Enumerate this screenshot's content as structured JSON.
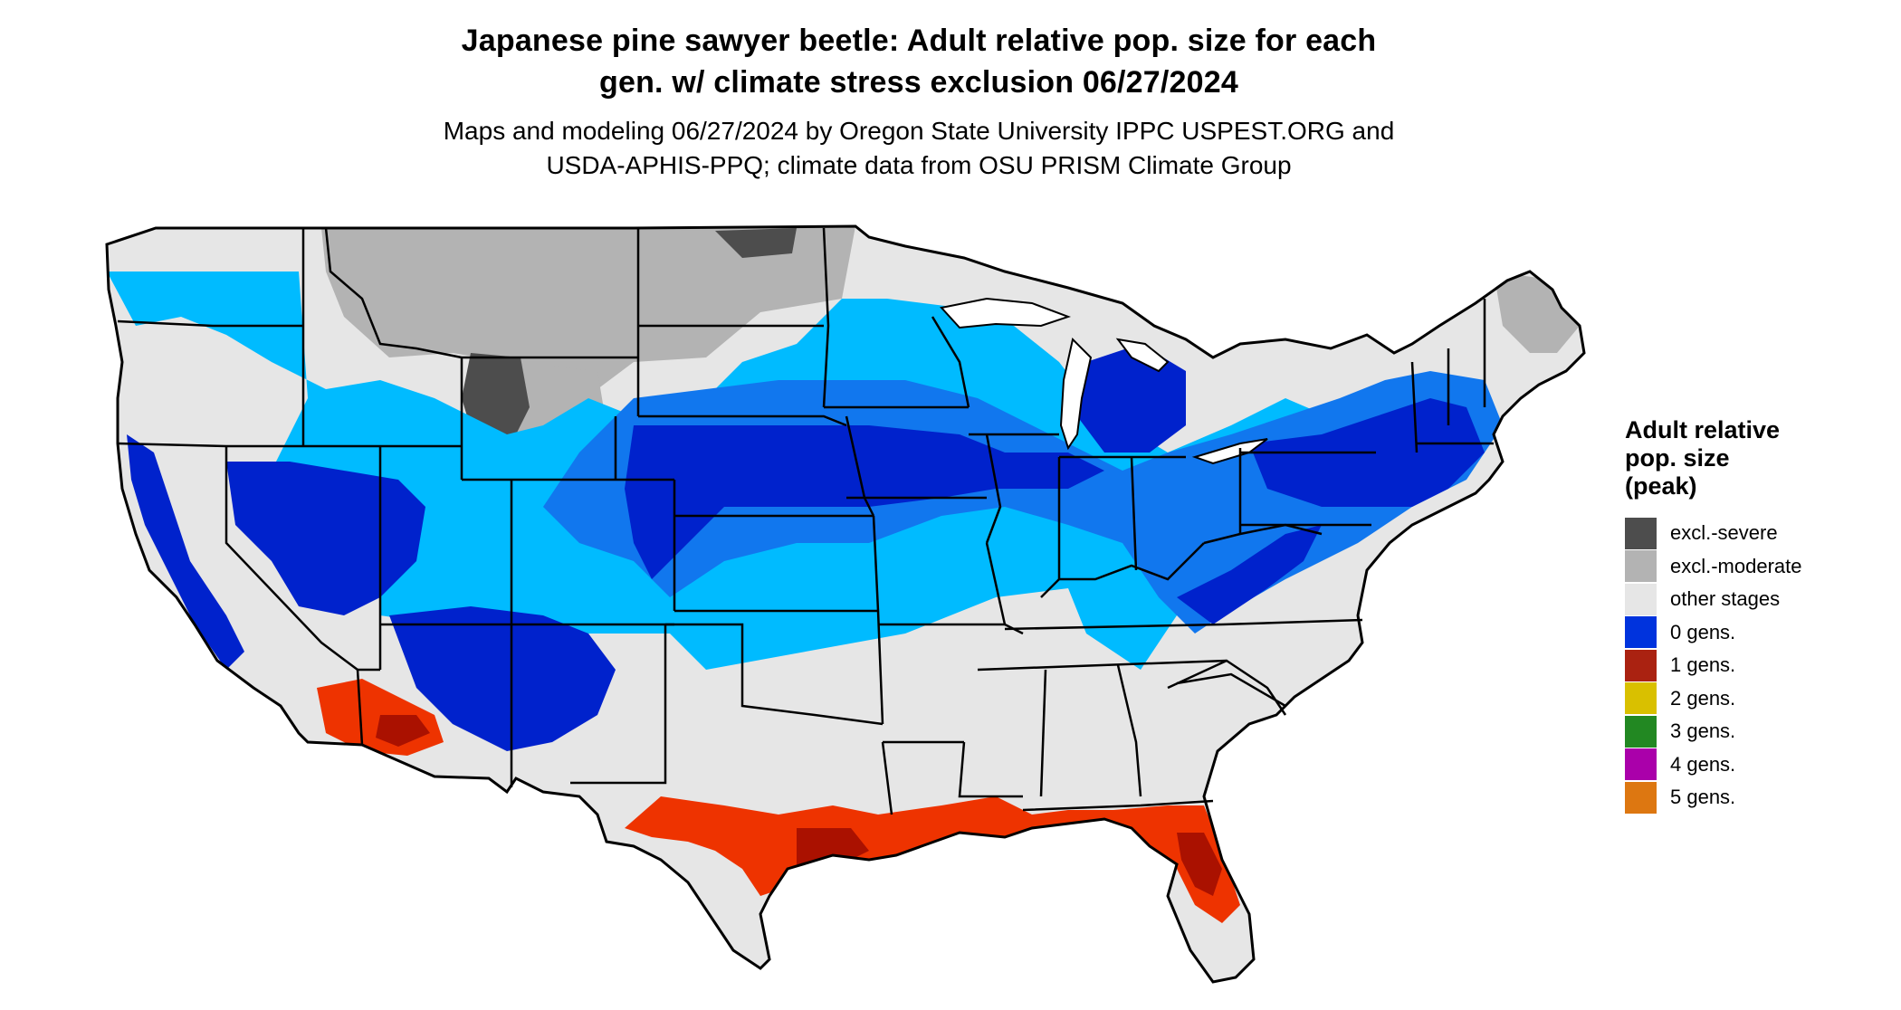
{
  "title": {
    "line1": "Japanese pine sawyer beetle: Adult relative pop. size for each",
    "line2": "gen. w/ climate stress exclusion 06/27/2024"
  },
  "subtitle": {
    "line1": "Maps and modeling 06/27/2024 by Oregon State University IPPC USPEST.ORG and",
    "line2": "USDA-APHIS-PPQ; climate data from OSU PRISM Climate Group"
  },
  "legend": {
    "title_line1": "Adult relative",
    "title_line2": "pop. size",
    "title_line3": "(peak)",
    "items": [
      {
        "label": "excl.-severe",
        "color": "#4d4d4d"
      },
      {
        "label": "excl.-moderate",
        "color": "#b3b3b3"
      },
      {
        "label": "other stages",
        "color": "#e6e6e6"
      },
      {
        "label": "0 gens.",
        "color": "#0033dd"
      },
      {
        "label": "1 gens.",
        "color": "#aa2211"
      },
      {
        "label": "2 gens.",
        "color": "#d9c000"
      },
      {
        "label": "3 gens.",
        "color": "#228822"
      },
      {
        "label": "4 gens.",
        "color": "#aa00aa"
      },
      {
        "label": "5 gens.",
        "color": "#dd7711"
      }
    ]
  },
  "colors": {
    "land": "#e6e6e6",
    "excl_severe": "#4d4d4d",
    "excl_moderate": "#b3b3b3",
    "light_blue": "#00bbff",
    "medium_blue": "#1177ee",
    "dark_blue": "#0022cc",
    "orange_red": "#ee3300",
    "dark_red": "#aa1100",
    "border": "#000000"
  }
}
